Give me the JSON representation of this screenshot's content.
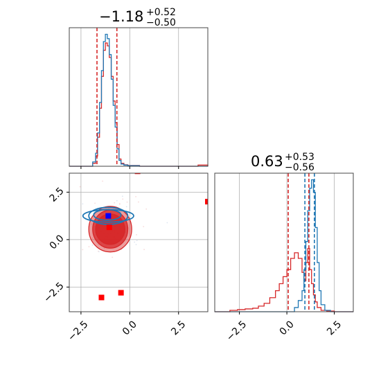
{
  "chart_data": {
    "type": "corner",
    "grid": true,
    "colors": {
      "series_a": "#d62728",
      "series_b": "#1f77b4",
      "marker_red": "#ff0000",
      "marker_blue": "#0000ff"
    },
    "params": [
      {
        "title": {
          "median": "−1.18",
          "plus": "+0.52",
          "minus": "−0.50"
        },
        "range": [
          -3.1,
          4.0
        ],
        "ticks": [
          -2.5,
          0.0,
          2.5
        ],
        "tick_labels": [
          "−2.5",
          "0.0",
          "2.5"
        ],
        "quantiles_red": [
          -1.68,
          -0.66
        ],
        "quantiles_blue": [],
        "hist_red": {
          "edges": [
            -3.1,
            -1.9,
            -1.75,
            -1.65,
            -1.55,
            -1.45,
            -1.35,
            -1.25,
            -1.15,
            -1.05,
            -0.95,
            -0.85,
            -0.75,
            -0.65,
            -0.55,
            -0.45,
            -0.3,
            -0.1,
            0.5,
            3.5,
            4.0
          ],
          "values": [
            0,
            0.02,
            0.07,
            0.2,
            0.4,
            0.62,
            0.8,
            0.85,
            0.83,
            0.75,
            0.62,
            0.45,
            0.3,
            0.15,
            0.05,
            0.02,
            0.01,
            0.005,
            0,
            0.008
          ]
        },
        "hist_blue": {
          "edges": [
            -3.1,
            -1.9,
            -1.75,
            -1.65,
            -1.55,
            -1.45,
            -1.35,
            -1.25,
            -1.15,
            -1.05,
            -0.95,
            -0.85,
            -0.75,
            -0.65,
            -0.55,
            -0.45,
            -0.3,
            -0.1,
            0.5,
            4.0
          ],
          "values": [
            0,
            0.03,
            0.09,
            0.23,
            0.44,
            0.66,
            0.86,
            0.91,
            0.88,
            0.77,
            0.6,
            0.42,
            0.27,
            0.12,
            0.04,
            0.015,
            0.008,
            0.004,
            0
          ]
        }
      },
      {
        "title": {
          "median": "0.63",
          "plus": "+0.53",
          "minus": "−0.56"
        },
        "range": [
          -3.8,
          3.5
        ],
        "ticks": [
          -2.5,
          0.0,
          2.5
        ],
        "tick_labels": [
          "−2.5",
          "0.0",
          "2.5"
        ],
        "quantiles_red": [
          0.07,
          1.16
        ],
        "quantiles_blue": [
          0.95,
          1.45
        ],
        "hist_red": {
          "edges": [
            -3.8,
            -3.0,
            -2.6,
            -2.2,
            -1.8,
            -1.5,
            -1.2,
            -0.9,
            -0.6,
            -0.4,
            -0.2,
            0.0,
            0.2,
            0.4,
            0.6,
            0.8,
            0.9,
            1.0,
            1.1,
            1.2,
            1.3,
            1.4,
            1.5,
            1.6,
            1.8,
            2.1,
            2.5,
            3.5
          ],
          "values": [
            0,
            0.01,
            0.015,
            0.02,
            0.025,
            0.04,
            0.06,
            0.1,
            0.15,
            0.2,
            0.25,
            0.3,
            0.38,
            0.42,
            0.38,
            0.28,
            0.22,
            0.35,
            0.45,
            0.3,
            0.2,
            0.12,
            0.07,
            0.03,
            0.01,
            0.005,
            0
          ]
        },
        "hist_blue": {
          "edges": [
            -3.8,
            0.4,
            0.6,
            0.8,
            0.9,
            1.0,
            1.1,
            1.2,
            1.3,
            1.4,
            1.5,
            1.6,
            1.7,
            1.8,
            2.0,
            2.3,
            3.5
          ],
          "values": [
            0,
            0.03,
            0.08,
            0.15,
            0.3,
            0.5,
            0.72,
            0.88,
            0.94,
            0.85,
            0.6,
            0.35,
            0.15,
            0.05,
            0.01,
            0
          ]
        }
      }
    ],
    "joint": {
      "red_contours": [
        {
          "cx": -1.0,
          "cy": 0.55,
          "rx": 1.1,
          "ry": 1.2,
          "fill_opacity": 0.45
        },
        {
          "cx": -1.0,
          "cy": 0.55,
          "rx": 0.9,
          "ry": 1.0,
          "fill_opacity": 0.75
        },
        {
          "cx": -1.0,
          "cy": 0.55,
          "rx": 0.75,
          "ry": 0.8,
          "fill_opacity": 0.9
        }
      ],
      "blue_contours": [
        {
          "cx": -1.1,
          "cy": 1.25,
          "rx": 1.3,
          "ry": 0.33
        },
        {
          "cx": -1.1,
          "cy": 1.25,
          "rx": 1.0,
          "ry": 0.45
        },
        {
          "cx": -1.15,
          "cy": 1.3,
          "rx": 0.7,
          "ry": 0.28
        }
      ],
      "markers_red": [
        {
          "x": -1.05,
          "y": 0.65
        },
        {
          "x": 0.4,
          "y": 3.6
        },
        {
          "x": 4.0,
          "y": 2.0
        },
        {
          "x": -0.45,
          "y": -2.8
        },
        {
          "x": -1.45,
          "y": -3.05
        }
      ],
      "markers_blue": [
        {
          "x": -1.1,
          "y": 1.25
        }
      ]
    }
  }
}
